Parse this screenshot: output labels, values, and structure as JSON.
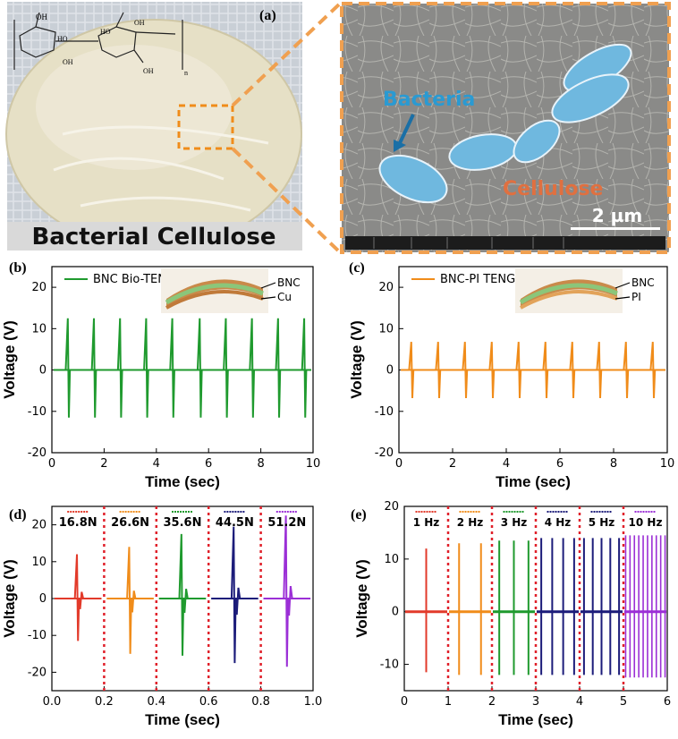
{
  "panel_a": {
    "label": "(a)",
    "photo_caption": "Bacterial Cellulose",
    "bacteria_label": "Bacteria",
    "cellulose_label": "Cellulose",
    "scale_bar": "2 µm",
    "colors": {
      "bacteria": "#6fb8df",
      "callout": "#f0a050",
      "photo_bg": "#c9cfd6",
      "sem_bg": "#8a8a88"
    }
  },
  "chart_data": [
    {
      "id": "b",
      "type": "line",
      "panel_label": "(b)",
      "legend": [
        "BNC Bio-TENG"
      ],
      "inset_labels": [
        "BNC",
        "Cu"
      ],
      "xlabel": "Time (sec)",
      "ylabel": "Voltage (V)",
      "xlim": [
        0,
        10
      ],
      "ylim": [
        -20,
        25
      ],
      "x_ticks": [
        "0",
        "2",
        "4",
        "6",
        "8",
        "10"
      ],
      "y_ticks": [
        "-20",
        "-10",
        "0",
        "10",
        "20"
      ],
      "series": [
        {
          "name": "BNC Bio-TENG",
          "color": "#1f9a2e",
          "peaks": [
            0.65,
            1.65,
            2.65,
            3.65,
            4.65,
            5.7,
            6.7,
            7.7,
            8.7,
            9.7
          ],
          "pos": 12.5,
          "neg": -11.5
        }
      ]
    },
    {
      "id": "c",
      "type": "line",
      "panel_label": "(c)",
      "legend": [
        "BNC-PI TENG"
      ],
      "inset_labels": [
        "BNC",
        "PI"
      ],
      "xlabel": "Time (sec)",
      "ylabel": "Voltage (V)",
      "xlim": [
        0,
        10
      ],
      "ylim": [
        -20,
        25
      ],
      "x_ticks": [
        "0",
        "2",
        "4",
        "6",
        "8",
        "10"
      ],
      "y_ticks": [
        "-20",
        "-10",
        "0",
        "10",
        "20"
      ],
      "series": [
        {
          "name": "BNC-PI TENG",
          "color": "#f08c1a",
          "peaks": [
            0.5,
            1.5,
            2.5,
            3.5,
            4.5,
            5.5,
            6.5,
            7.5,
            8.5,
            9.5
          ],
          "pos": 6.8,
          "neg": -6.8
        }
      ]
    },
    {
      "id": "d",
      "type": "line",
      "panel_label": "(d)",
      "xlabel": "Time (sec)",
      "ylabel": "Voltage (V)",
      "xlim": [
        0,
        1
      ],
      "ylim": [
        -25,
        25
      ],
      "x_ticks": [
        "0.0",
        "0.2",
        "0.4",
        "0.6",
        "0.8",
        "1.0"
      ],
      "y_ticks": [
        "-20",
        "-10",
        "0",
        "10",
        "20"
      ],
      "dividers": [
        0.2,
        0.4,
        0.6,
        0.8
      ],
      "series": [
        {
          "name": "16.8N",
          "color": "#e23a2a",
          "peak_x": 0.1,
          "pos": 12,
          "neg": -11.5
        },
        {
          "name": "26.6N",
          "color": "#f08c1a",
          "peak_x": 0.3,
          "pos": 14,
          "neg": -15
        },
        {
          "name": "35.6N",
          "color": "#1f9a2e",
          "peak_x": 0.5,
          "pos": 17.5,
          "neg": -15.5
        },
        {
          "name": "44.5N",
          "color": "#1c1c7a",
          "peak_x": 0.7,
          "pos": 19.5,
          "neg": -17.5
        },
        {
          "name": "51.2N",
          "color": "#9b2fd6",
          "peak_x": 0.9,
          "pos": 22.5,
          "neg": -18.5
        }
      ]
    },
    {
      "id": "e",
      "type": "line",
      "panel_label": "(e)",
      "xlabel": "Time (sec)",
      "ylabel": "Voltage (V)",
      "xlim": [
        0,
        6
      ],
      "ylim": [
        -15,
        20
      ],
      "x_ticks": [
        "0",
        "1",
        "2",
        "3",
        "4",
        "5",
        "6"
      ],
      "y_ticks": [
        "-10",
        "0",
        "10",
        "20"
      ],
      "dividers": [
        1,
        2,
        3,
        4,
        5
      ],
      "series": [
        {
          "name": "1 Hz",
          "color": "#e23a2a",
          "seg": [
            0,
            1
          ],
          "freq": 1,
          "pos": 12,
          "neg": -11.5
        },
        {
          "name": "2 Hz",
          "color": "#f08c1a",
          "seg": [
            1,
            2
          ],
          "freq": 2,
          "pos": 13,
          "neg": -12
        },
        {
          "name": "3 Hz",
          "color": "#1f9a2e",
          "seg": [
            2,
            3
          ],
          "freq": 3,
          "pos": 13.5,
          "neg": -12
        },
        {
          "name": "4 Hz",
          "color": "#1c1c7a",
          "seg": [
            3,
            4
          ],
          "freq": 4,
          "pos": 14,
          "neg": -12
        },
        {
          "name": "5 Hz",
          "color": "#1c1c7a",
          "seg": [
            4,
            5
          ],
          "freq": 5,
          "pos": 14,
          "neg": -12
        },
        {
          "name": "10 Hz",
          "color": "#9b2fd6",
          "seg": [
            5,
            6
          ],
          "freq": 10,
          "pos": 14.5,
          "neg": -12.5
        }
      ]
    }
  ]
}
